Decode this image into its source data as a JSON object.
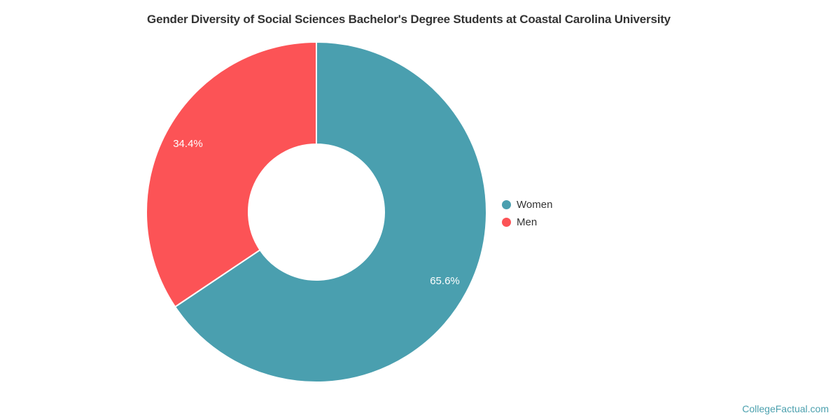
{
  "page": {
    "background": "#ffffff",
    "watermark": "CollegeFactual.com",
    "watermark_color": "#4BA0AE"
  },
  "chart_data": {
    "type": "pie",
    "subtype": "donut",
    "title": "Gender Diversity of Social Sciences Bachelor's Degree Students at Coastal Carolina University",
    "title_color": "#333333",
    "legend_position": "right",
    "start_angle_deg": 0,
    "direction": "clockwise",
    "data_label_color": "#ffffff",
    "slice_border_color": "#ffffff",
    "slices": [
      {
        "name": "Women",
        "value": 65.6,
        "label": "65.6%",
        "color": "#4A9FAF"
      },
      {
        "name": "Men",
        "value": 34.4,
        "label": "34.4%",
        "color": "#FC5356"
      }
    ]
  },
  "legend": {
    "items": [
      {
        "label": "Women",
        "color": "#4A9FAF"
      },
      {
        "label": "Men",
        "color": "#FC5356"
      }
    ]
  }
}
